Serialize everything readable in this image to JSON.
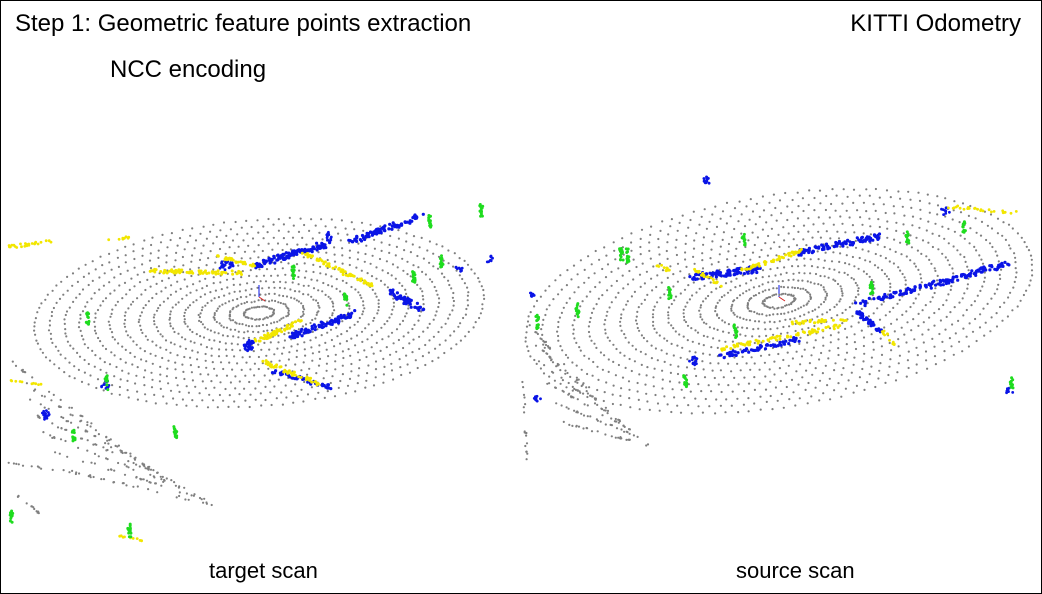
{
  "header": {
    "title": "Step 1: Geometric feature points extraction",
    "dataset": "KITTI Odometry",
    "subtitle": "NCC encoding"
  },
  "panels": [
    {
      "label": "target scan"
    },
    {
      "label": "source scan"
    }
  ],
  "colors": {
    "ground_points": "#7f7f7f",
    "feature_blue": "#0a14e6",
    "feature_yellow": "#f2e600",
    "feature_green": "#1fdc1f",
    "background": "#ffffff",
    "text": "#000000"
  }
}
